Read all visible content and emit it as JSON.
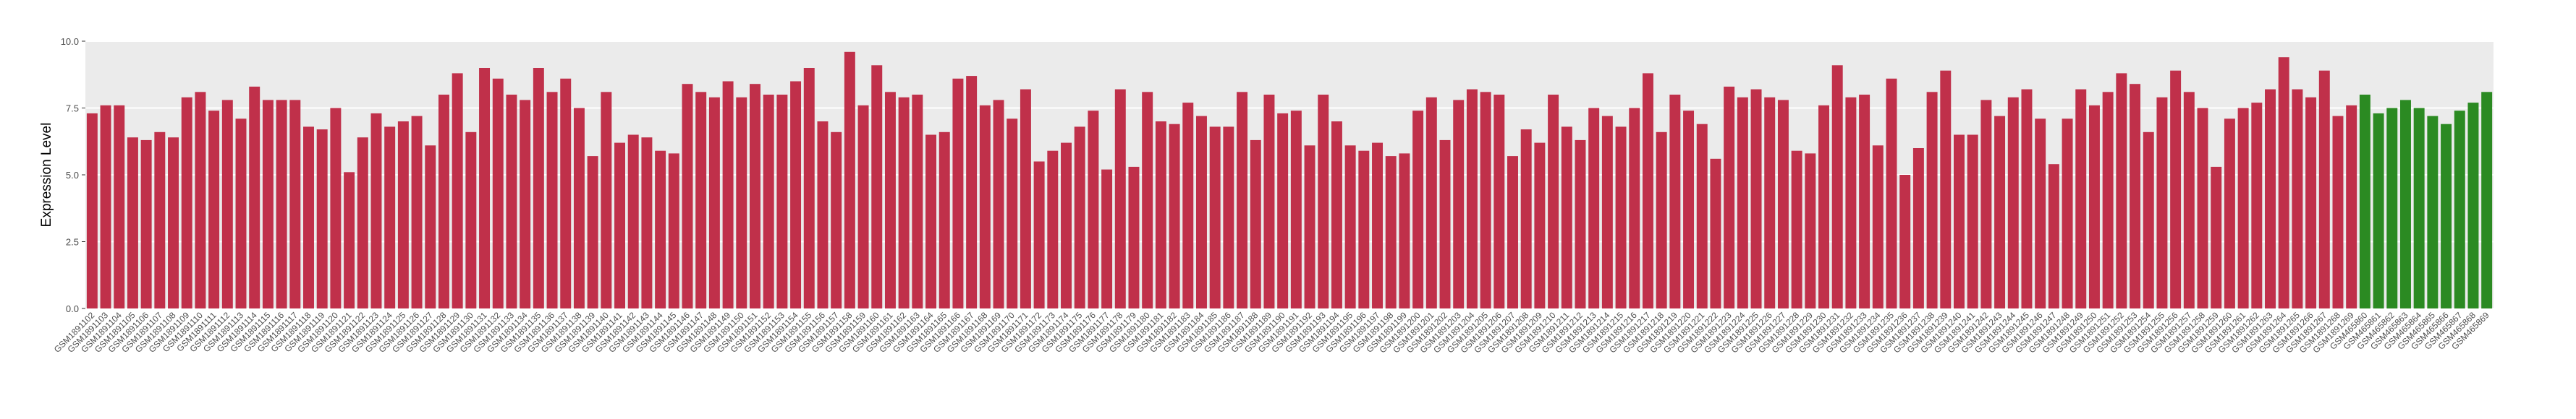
{
  "chart_data": {
    "type": "bar",
    "y_label": "Expression Level",
    "categories": [
      "GSM1891102",
      "GSM1891103",
      "GSM1891104",
      "GSM1891105",
      "GSM1891106",
      "GSM1891107",
      "GSM1891108",
      "GSM1891109",
      "GSM1891110",
      "GSM1891111",
      "GSM1891112",
      "GSM1891113",
      "GSM1891114",
      "GSM1891115",
      "GSM1891116",
      "GSM1891117",
      "GSM1891118",
      "GSM1891119",
      "GSM1891120",
      "GSM1891121",
      "GSM1891122",
      "GSM1891123",
      "GSM1891124",
      "GSM1891125",
      "GSM1891126",
      "GSM1891127",
      "GSM1891128",
      "GSM1891129",
      "GSM1891130",
      "GSM1891131",
      "GSM1891132",
      "GSM1891133",
      "GSM1891134",
      "GSM1891135",
      "GSM1891136",
      "GSM1891137",
      "GSM1891138",
      "GSM1891139",
      "GSM1891140",
      "GSM1891141",
      "GSM1891142",
      "GSM1891143",
      "GSM1891144",
      "GSM1891145",
      "GSM1891146",
      "GSM1891147",
      "GSM1891148",
      "GSM1891149",
      "GSM1891150",
      "GSM1891151",
      "GSM1891152",
      "GSM1891153",
      "GSM1891154",
      "GSM1891155",
      "GSM1891156",
      "GSM1891157",
      "GSM1891158",
      "GSM1891159",
      "GSM1891160",
      "GSM1891161",
      "GSM1891162",
      "GSM1891163",
      "GSM1891164",
      "GSM1891165",
      "GSM1891166",
      "GSM1891167",
      "GSM1891168",
      "GSM1891169",
      "GSM1891170",
      "GSM1891171",
      "GSM1891172",
      "GSM1891173",
      "GSM1891174",
      "GSM1891175",
      "GSM1891176",
      "GSM1891177",
      "GSM1891178",
      "GSM1891179",
      "GSM1891180",
      "GSM1891181",
      "GSM1891182",
      "GSM1891183",
      "GSM1891184",
      "GSM1891185",
      "GSM1891186",
      "GSM1891187",
      "GSM1891188",
      "GSM1891189",
      "GSM1891190",
      "GSM1891191",
      "GSM1891192",
      "GSM1891193",
      "GSM1891194",
      "GSM1891195",
      "GSM1891196",
      "GSM1891197",
      "GSM1891198",
      "GSM1891199",
      "GSM1891200",
      "GSM1891201",
      "GSM1891202",
      "GSM1891203",
      "GSM1891204",
      "GSM1891205",
      "GSM1891206",
      "GSM1891207",
      "GSM1891208",
      "GSM1891209",
      "GSM1891210",
      "GSM1891211",
      "GSM1891212",
      "GSM1891213",
      "GSM1891214",
      "GSM1891215",
      "GSM1891216",
      "GSM1891217",
      "GSM1891218",
      "GSM1891219",
      "GSM1891220",
      "GSM1891221",
      "GSM1891222",
      "GSM1891223",
      "GSM1891224",
      "GSM1891225",
      "GSM1891226",
      "GSM1891227",
      "GSM1891228",
      "GSM1891229",
      "GSM1891230",
      "GSM1891231",
      "GSM1891232",
      "GSM1891233",
      "GSM1891234",
      "GSM1891235",
      "GSM1891236",
      "GSM1891237",
      "GSM1891238",
      "GSM1891239",
      "GSM1891240",
      "GSM1891241",
      "GSM1891242",
      "GSM1891243",
      "GSM1891244",
      "GSM1891245",
      "GSM1891246",
      "GSM1891247",
      "GSM1891248",
      "GSM1891249",
      "GSM1891250",
      "GSM1891251",
      "GSM1891252",
      "GSM1891253",
      "GSM1891254",
      "GSM1891255",
      "GSM1891256",
      "GSM1891257",
      "GSM1891258",
      "GSM1891259",
      "GSM1891260",
      "GSM1891261",
      "GSM1891262",
      "GSM1891263",
      "GSM1891264",
      "GSM1891265",
      "GSM1891266",
      "GSM1891267",
      "GSM1891268",
      "GSM1891269",
      "GSM465860",
      "GSM465861",
      "GSM465862",
      "GSM465863",
      "GSM465864",
      "GSM465865",
      "GSM465866",
      "GSM465867",
      "GSM465868",
      "GSM465869"
    ],
    "values": [
      7.3,
      7.6,
      7.6,
      6.4,
      6.3,
      6.6,
      6.4,
      7.9,
      8.1,
      7.4,
      7.8,
      7.1,
      8.3,
      7.8,
      7.8,
      7.8,
      6.8,
      6.7,
      7.5,
      5.1,
      6.4,
      7.3,
      6.8,
      7.0,
      7.2,
      6.1,
      8.0,
      8.8,
      6.6,
      9.0,
      8.6,
      8.0,
      7.8,
      9.0,
      8.1,
      8.6,
      7.5,
      5.7,
      8.1,
      6.2,
      6.5,
      6.4,
      5.9,
      5.8,
      8.4,
      8.1,
      7.9,
      8.5,
      7.9,
      8.4,
      8.0,
      8.0,
      8.5,
      9.0,
      7.0,
      6.6,
      9.6,
      7.6,
      9.1,
      8.1,
      7.9,
      8.0,
      6.5,
      6.6,
      8.6,
      8.7,
      7.6,
      7.8,
      7.1,
      8.2,
      5.5,
      5.9,
      6.2,
      6.8,
      7.4,
      5.2,
      8.2,
      5.3,
      8.1,
      7.0,
      6.9,
      7.7,
      7.2,
      6.8,
      6.8,
      8.1,
      6.3,
      8.0,
      7.3,
      7.4,
      6.1,
      8.0,
      7.0,
      6.1,
      5.9,
      6.2,
      5.7,
      5.8,
      7.4,
      7.9,
      6.3,
      7.8,
      8.2,
      8.1,
      8.0,
      5.7,
      6.7,
      6.2,
      8.0,
      6.8,
      6.3,
      7.5,
      7.2,
      6.8,
      7.5,
      8.8,
      6.6,
      8.0,
      7.4,
      6.9,
      5.6,
      8.3,
      7.9,
      8.2,
      7.9,
      7.8,
      5.9,
      5.8,
      7.6,
      9.1,
      7.9,
      8.0,
      6.1,
      8.6,
      5.0,
      6.0,
      8.1,
      8.9,
      6.5,
      6.5,
      7.8,
      7.2,
      7.9,
      8.2,
      7.1,
      5.4,
      7.1,
      8.2,
      7.6,
      8.1,
      8.8,
      8.4,
      6.6,
      7.9,
      8.9,
      8.1,
      7.5,
      5.3,
      7.1,
      7.5,
      7.7,
      8.2,
      9.4,
      8.2,
      7.9,
      8.9,
      7.2,
      7.6,
      8.0,
      7.3,
      7.5,
      7.8,
      7.5,
      7.2,
      6.9,
      7.4,
      7.7,
      8.1
    ],
    "colors": [
      "#c0304a",
      "#c0304a",
      "#c0304a",
      "#c0304a",
      "#c0304a",
      "#c0304a",
      "#c0304a",
      "#c0304a",
      "#c0304a",
      "#c0304a",
      "#c0304a",
      "#c0304a",
      "#c0304a",
      "#c0304a",
      "#c0304a",
      "#c0304a",
      "#c0304a",
      "#c0304a",
      "#c0304a",
      "#c0304a",
      "#c0304a",
      "#c0304a",
      "#c0304a",
      "#c0304a",
      "#c0304a",
      "#c0304a",
      "#c0304a",
      "#c0304a",
      "#c0304a",
      "#c0304a",
      "#c0304a",
      "#c0304a",
      "#c0304a",
      "#c0304a",
      "#c0304a",
      "#c0304a",
      "#c0304a",
      "#c0304a",
      "#c0304a",
      "#c0304a",
      "#c0304a",
      "#c0304a",
      "#c0304a",
      "#c0304a",
      "#c0304a",
      "#c0304a",
      "#c0304a",
      "#c0304a",
      "#c0304a",
      "#c0304a",
      "#c0304a",
      "#c0304a",
      "#c0304a",
      "#c0304a",
      "#c0304a",
      "#c0304a",
      "#c0304a",
      "#c0304a",
      "#c0304a",
      "#c0304a",
      "#c0304a",
      "#c0304a",
      "#c0304a",
      "#c0304a",
      "#c0304a",
      "#c0304a",
      "#c0304a",
      "#c0304a",
      "#c0304a",
      "#c0304a",
      "#c0304a",
      "#c0304a",
      "#c0304a",
      "#c0304a",
      "#c0304a",
      "#c0304a",
      "#c0304a",
      "#c0304a",
      "#c0304a",
      "#c0304a",
      "#c0304a",
      "#c0304a",
      "#c0304a",
      "#c0304a",
      "#c0304a",
      "#c0304a",
      "#c0304a",
      "#c0304a",
      "#c0304a",
      "#c0304a",
      "#c0304a",
      "#c0304a",
      "#c0304a",
      "#c0304a",
      "#c0304a",
      "#c0304a",
      "#c0304a",
      "#c0304a",
      "#c0304a",
      "#c0304a",
      "#c0304a",
      "#c0304a",
      "#c0304a",
      "#c0304a",
      "#c0304a",
      "#c0304a",
      "#c0304a",
      "#c0304a",
      "#c0304a",
      "#c0304a",
      "#c0304a",
      "#c0304a",
      "#c0304a",
      "#c0304a",
      "#c0304a",
      "#c0304a",
      "#c0304a",
      "#c0304a",
      "#c0304a",
      "#c0304a",
      "#c0304a",
      "#c0304a",
      "#c0304a",
      "#c0304a",
      "#c0304a",
      "#c0304a",
      "#c0304a",
      "#c0304a",
      "#c0304a",
      "#c0304a",
      "#c0304a",
      "#c0304a",
      "#c0304a",
      "#c0304a",
      "#c0304a",
      "#c0304a",
      "#c0304a",
      "#c0304a",
      "#c0304a",
      "#c0304a",
      "#c0304a",
      "#c0304a",
      "#c0304a",
      "#c0304a",
      "#c0304a",
      "#c0304a",
      "#c0304a",
      "#c0304a",
      "#c0304a",
      "#c0304a",
      "#c0304a",
      "#c0304a",
      "#c0304a",
      "#c0304a",
      "#c0304a",
      "#c0304a",
      "#c0304a",
      "#c0304a",
      "#c0304a",
      "#c0304a",
      "#c0304a",
      "#c0304a",
      "#c0304a",
      "#c0304a",
      "#c0304a",
      "#c0304a",
      "#c0304a",
      "#c0304a",
      "#2b8a22",
      "#2b8a22",
      "#2b8a22",
      "#2b8a22",
      "#2b8a22",
      "#2b8a22",
      "#2b8a22",
      "#2b8a22",
      "#2b8a22",
      "#2b8a22"
    ],
    "ylim": [
      0,
      10
    ],
    "yticks": [
      {
        "value": 0,
        "label": "0.0"
      },
      {
        "value": 2.5,
        "label": "2.5"
      },
      {
        "value": 5,
        "label": "5.0"
      },
      {
        "value": 7.5,
        "label": "7.5"
      },
      {
        "value": 10,
        "label": "10.0"
      }
    ],
    "grid": true
  }
}
